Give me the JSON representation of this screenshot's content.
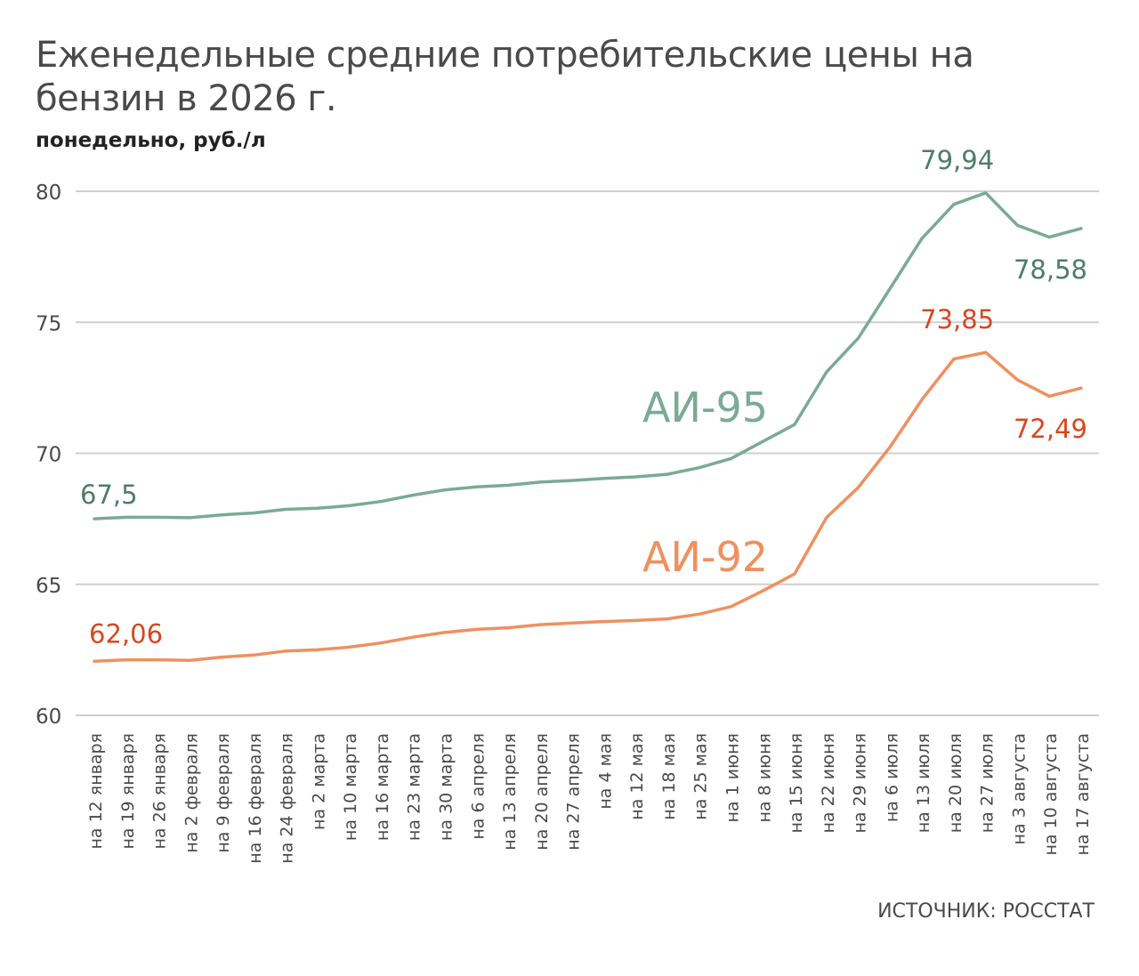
{
  "chart_data": {
    "type": "line",
    "title": "Еженедельные средние потребительские цены на бензин в 2026 г.",
    "subtitle": "понедельно, руб./л",
    "source": "ИСТОЧНИК: РОССТАТ",
    "ylim": [
      60,
      80
    ],
    "yticks": [
      "60",
      "65",
      "70",
      "75",
      "80"
    ],
    "grid": true,
    "categories": [
      "на 12 января",
      "на 19 января",
      "на 26 января",
      "на 2 февраля",
      "на 9 февраля",
      "на 16 февраля",
      "на 24 февраля",
      "на 2 марта",
      "на 10 марта",
      "на 16 марта",
      "на 23 марта",
      "на 30 марта",
      "на 6 апреля",
      "на 13 апреля",
      "на 20 апреля",
      "на 27 апреля",
      "на 4 мая",
      "на 12 мая",
      "на 18 мая",
      "на 25 мая",
      "на 1 июня",
      "на 8 июня",
      "на 15 июня",
      "на 22 июня",
      "на 29 июня",
      "на 6 июля",
      "на 13 июля",
      "на 20 июля",
      "на 27 июля",
      "на 3 августа",
      "на 10 августа",
      "на 17 августа"
    ],
    "series": [
      {
        "name": "АИ-95",
        "color": "#7aab94",
        "values": [
          67.5,
          67.56,
          67.56,
          67.54,
          67.65,
          67.72,
          67.86,
          67.9,
          68.0,
          68.16,
          68.4,
          68.6,
          68.72,
          68.78,
          68.9,
          68.96,
          69.04,
          69.1,
          69.2,
          69.45,
          69.8,
          70.45,
          71.1,
          73.1,
          74.4,
          76.3,
          78.2,
          79.5,
          79.94,
          78.7,
          78.25,
          78.58
        ],
        "labels": [
          {
            "index": 0,
            "text": "67,5"
          },
          {
            "index": 28,
            "text": "79,94"
          },
          {
            "index": 31,
            "text": "78,58"
          }
        ]
      },
      {
        "name": "АИ-92",
        "color": "#ef9060",
        "values": [
          62.06,
          62.12,
          62.12,
          62.1,
          62.22,
          62.3,
          62.45,
          62.5,
          62.6,
          62.76,
          62.98,
          63.16,
          63.28,
          63.34,
          63.46,
          63.52,
          63.58,
          63.62,
          63.68,
          63.86,
          64.15,
          64.75,
          65.4,
          67.55,
          68.7,
          70.25,
          72.05,
          73.6,
          73.85,
          72.8,
          72.18,
          72.49
        ],
        "labels": [
          {
            "index": 0,
            "text": "62,06"
          },
          {
            "index": 28,
            "text": "73,85"
          },
          {
            "index": 31,
            "text": "72,49"
          }
        ]
      }
    ],
    "label_colors": {
      "АИ-95": "#4d7d66",
      "АИ-92": "#d9471e"
    }
  }
}
